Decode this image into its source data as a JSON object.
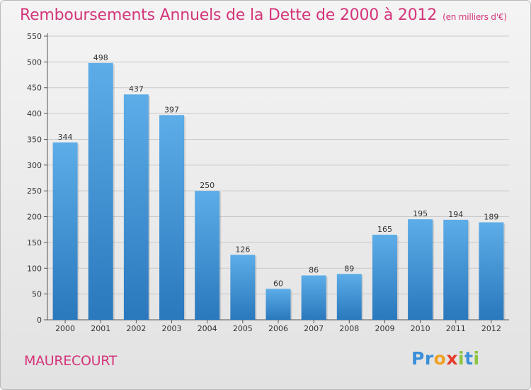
{
  "title": "Remboursements Annuels de la Dette de 2000 à 2012",
  "unit": "(en milliers d'€)",
  "commune": "MAURECOURT",
  "logo": {
    "text": "Proxiti",
    "letters": [
      "P",
      "r",
      "o",
      "x",
      "i",
      "t",
      "i"
    ],
    "colors": [
      "#3a8fd9",
      "#3a8fd9",
      "#f0a020",
      "#e63a2a",
      "#8cc63f",
      "#3a8fd9",
      "#8cc63f"
    ]
  },
  "colors": {
    "title": "#d4357a",
    "bar_top": "#5cade8",
    "bar_bottom": "#2a78bd"
  },
  "chart_data": {
    "type": "bar",
    "title": "Remboursements Annuels de la Dette de 2000 à 2012",
    "categories": [
      "2000",
      "2001",
      "2002",
      "2003",
      "2004",
      "2005",
      "2006",
      "2007",
      "2008",
      "2009",
      "2010",
      "2011",
      "2012"
    ],
    "values": [
      344,
      498,
      437,
      397,
      250,
      126,
      60,
      86,
      89,
      165,
      195,
      194,
      189
    ],
    "ylim": [
      0,
      550
    ],
    "yticks": [
      0,
      50,
      100,
      150,
      200,
      250,
      300,
      350,
      400,
      450,
      500,
      550
    ],
    "grid": true,
    "xlabel": "",
    "ylabel": ""
  }
}
